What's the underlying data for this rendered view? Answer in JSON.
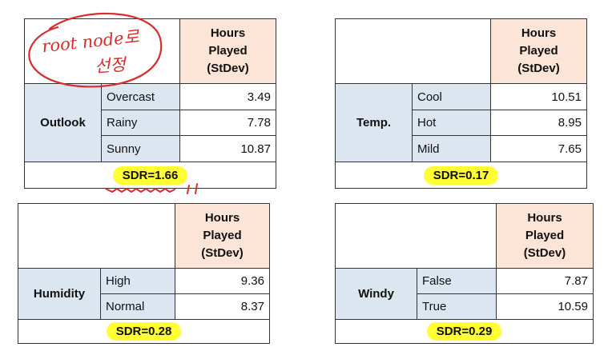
{
  "column_header": [
    "Hours",
    "Played",
    "(StDev)"
  ],
  "tables": {
    "outlook": {
      "attribute": "Outlook",
      "rows": [
        {
          "label": "Overcast",
          "value": "3.49"
        },
        {
          "label": "Rainy",
          "value": "7.78"
        },
        {
          "label": "Sunny",
          "value": "10.87"
        }
      ],
      "sdr": "SDR=1.66"
    },
    "temp": {
      "attribute": "Temp.",
      "rows": [
        {
          "label": "Cool",
          "value": "10.51"
        },
        {
          "label": "Hot",
          "value": "8.95"
        },
        {
          "label": "Mild",
          "value": "7.65"
        }
      ],
      "sdr": "SDR=0.17"
    },
    "humidity": {
      "attribute": "Humidity",
      "rows": [
        {
          "label": "High",
          "value": "9.36"
        },
        {
          "label": "Normal",
          "value": "8.37"
        }
      ],
      "sdr": "SDR=0.28"
    },
    "windy": {
      "attribute": "Windy",
      "rows": [
        {
          "label": "False",
          "value": "7.87"
        },
        {
          "label": "True",
          "value": "10.59"
        }
      ],
      "sdr": "SDR=0.29"
    }
  },
  "annotation": {
    "line1": "root node로",
    "line2": "선정",
    "ink_color": "#d62d2d",
    "highlight_color": "#ffff33"
  }
}
